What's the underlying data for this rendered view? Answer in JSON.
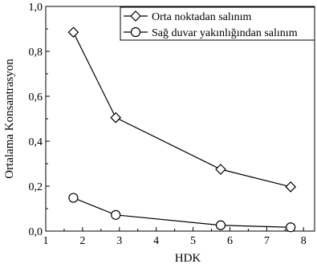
{
  "chart_data": {
    "type": "line",
    "title": "",
    "xlabel": "HDK",
    "ylabel": "Ortalama Konsantrasyon",
    "xlim": [
      1,
      8.3
    ],
    "ylim": [
      0,
      1.0
    ],
    "xticks": [
      1,
      2,
      3,
      4,
      5,
      6,
      7,
      8
    ],
    "xtick_labels": [
      "1",
      "2",
      "3",
      "4",
      "5",
      "6",
      "7",
      "8"
    ],
    "yticks": [
      0,
      0.2,
      0.4,
      0.6,
      0.8,
      1.0
    ],
    "ytick_labels": [
      "0,0",
      "0,2",
      "0,4",
      "0,6",
      "0,8",
      "1,0"
    ],
    "grid": false,
    "legend_position": "top-right",
    "series": [
      {
        "name": "Orta noktadan salınım",
        "marker": "diamond",
        "x": [
          1.75,
          2.9,
          5.75,
          7.65
        ],
        "y": [
          0.885,
          0.505,
          0.275,
          0.197
        ]
      },
      {
        "name": "Sağ duvar yakınlığından salınım",
        "marker": "circle",
        "x": [
          1.75,
          2.9,
          5.75,
          7.65
        ],
        "y": [
          0.148,
          0.072,
          0.026,
          0.017
        ]
      }
    ],
    "colors": {
      "line": "#000000",
      "marker_fill": "#ffffff"
    }
  }
}
